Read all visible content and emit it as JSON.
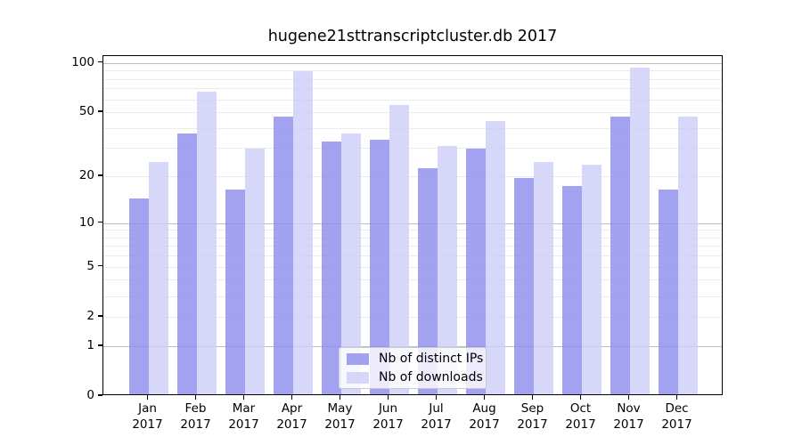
{
  "chart_data": {
    "type": "bar",
    "title": "hugene21sttranscriptcluster.db 2017",
    "categories": [
      "Jan",
      "Feb",
      "Mar",
      "Apr",
      "May",
      "Jun",
      "Jul",
      "Aug",
      "Sep",
      "Oct",
      "Nov",
      "Dec"
    ],
    "category_year": "2017",
    "series": [
      {
        "name": "Nb of distinct IPs",
        "color": "#a3a3f0",
        "values": [
          14,
          36,
          16,
          46,
          32,
          33,
          22,
          29,
          19,
          17,
          46,
          16
        ]
      },
      {
        "name": "Nb of downloads",
        "color": "#d9d9f8",
        "values": [
          24,
          65,
          29,
          87,
          36,
          54,
          30,
          43,
          24,
          23,
          91,
          46
        ]
      }
    ],
    "yscale": "log1p",
    "ylim": [
      0,
      110
    ],
    "ytick_values": [
      0,
      1,
      2,
      5,
      10,
      20,
      50,
      100
    ],
    "ytick_labels": [
      "0",
      "1",
      "2",
      "5",
      "10",
      "20",
      "50",
      "100"
    ],
    "grid": {
      "minor": [
        2,
        3,
        4,
        5,
        6,
        7,
        8,
        9,
        20,
        30,
        40,
        50,
        60,
        70,
        80,
        90
      ],
      "major": [
        1,
        10,
        100
      ]
    },
    "legend": {
      "position": "lower center",
      "entries": [
        "Nb of distinct IPs",
        "Nb of downloads"
      ]
    }
  },
  "colors": {
    "bar_ips": "rgba(141,141,237,0.82)",
    "bar_downloads": "rgba(205,205,247,0.8)",
    "grid_major": "#bdbdbd",
    "grid_minor": "#ececec",
    "spine": "#000000",
    "text": "#000000",
    "legend_border": "#cccccc",
    "legend_bg": "rgba(255,255,255,0.8)"
  }
}
